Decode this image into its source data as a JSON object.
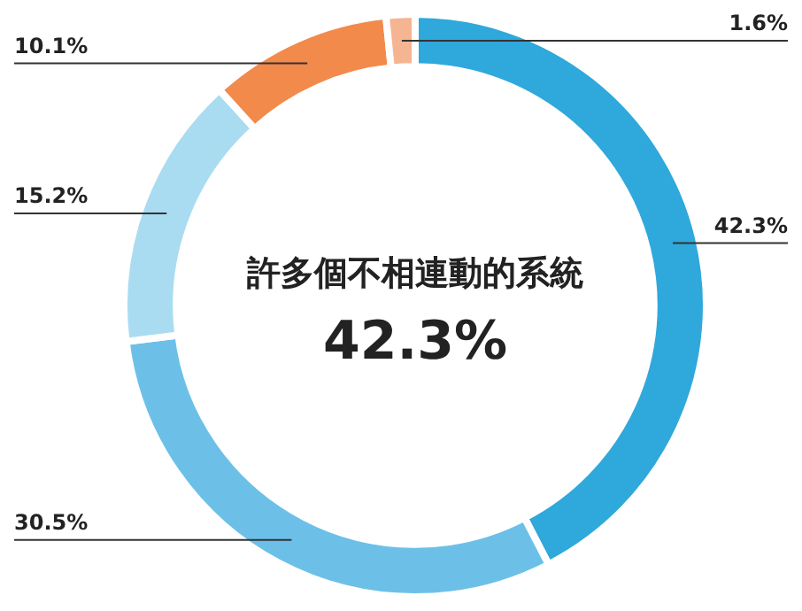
{
  "chart_data": {
    "type": "donut",
    "categories": [
      "許多個不相連動的系統",
      null,
      null,
      null,
      null
    ],
    "values": [
      42.3,
      30.5,
      15.2,
      10.1,
      1.6
    ],
    "colors": [
      "#2fa8dc",
      "#6cc0e8",
      "#a9dcf0",
      "#f28a4c",
      "#f5b592"
    ],
    "value_labels": [
      "42.3%",
      "30.5%",
      "15.2%",
      "10.1%",
      "1.6%"
    ],
    "legend": false
  }
}
